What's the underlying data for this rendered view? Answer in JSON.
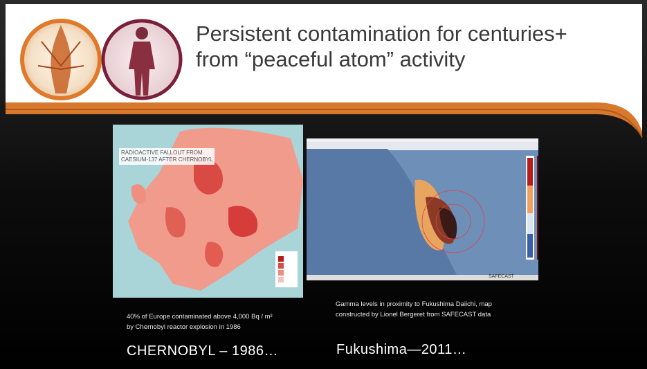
{
  "header": {
    "title": [
      "Persistent contamination for centuries+",
      "from “peaceful atom” activity"
    ]
  },
  "left_panel": {
    "map_label": [
      "RADIOACTIVE FALLOUT FROM",
      "CAESIUM-137 AFTER CHERNOBYL"
    ],
    "caption": [
      "40% of Europe contaminated above 4,000 Bq / m²",
      "by Chernobyl reactor explosion in 1986"
    ],
    "heading": "CHERNOBYL – 1986…"
  },
  "right_panel": {
    "map_label": "SAFECAST",
    "caption": [
      "Gamma levels in proximity to Fukushima Daiichi, map",
      "constructed by Lionel Bergeret from SAFECAST data"
    ],
    "heading": "Fukushima—2011…"
  }
}
